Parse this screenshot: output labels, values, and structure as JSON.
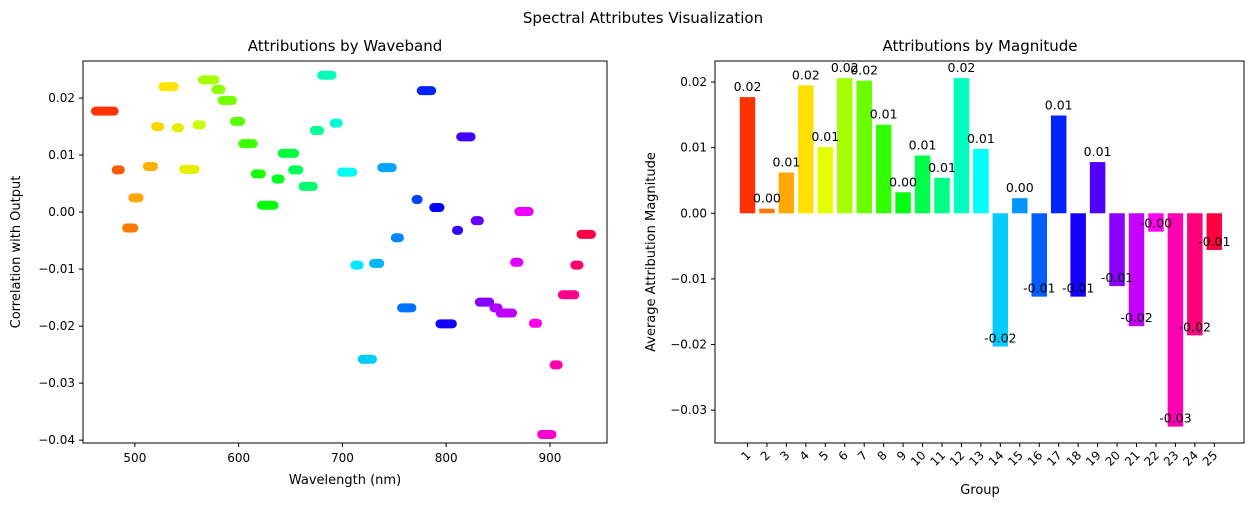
{
  "figure": {
    "suptitle": "Spectral Attributes Visualization"
  },
  "chart_data": [
    {
      "type": "scatter",
      "title": "Attributions by Waveband",
      "xlabel": "Wavelength (nm)",
      "ylabel": "Correlation with Output",
      "xlim": [
        450,
        955
      ],
      "ylim": [
        -0.0405,
        0.0265
      ],
      "xticks": [
        500,
        600,
        700,
        800,
        900
      ],
      "yticks": [
        -0.04,
        -0.03,
        -0.02,
        -0.01,
        0.0,
        0.01,
        0.02
      ],
      "ytick_labels": [
        "−0.04",
        "−0.03",
        "−0.02",
        "−0.01",
        "0.00",
        "0.01",
        "0.02"
      ],
      "grid": false,
      "segments": [
        {
          "x0": 462,
          "x1": 480,
          "y": 0.0177,
          "color": "#ff3300"
        },
        {
          "x0": 482,
          "x1": 486,
          "y": 0.0074,
          "color": "#ff5c00"
        },
        {
          "x0": 492,
          "x1": 499,
          "y": -0.0028,
          "color": "#ff7a00"
        },
        {
          "x0": 498,
          "x1": 504,
          "y": 0.0025,
          "color": "#ffa300"
        },
        {
          "x0": 512,
          "x1": 518,
          "y": 0.008,
          "color": "#ffb000"
        },
        {
          "x0": 520,
          "x1": 524,
          "y": 0.015,
          "color": "#ffd500"
        },
        {
          "x0": 527,
          "x1": 538,
          "y": 0.022,
          "color": "#ffe500"
        },
        {
          "x0": 540,
          "x1": 543,
          "y": 0.0148,
          "color": "#e3ee00"
        },
        {
          "x0": 547,
          "x1": 558,
          "y": 0.0075,
          "color": "#e6ef00"
        },
        {
          "x0": 560,
          "x1": 564,
          "y": 0.0153,
          "color": "#c8ff00"
        },
        {
          "x0": 565,
          "x1": 577,
          "y": 0.0232,
          "color": "#a6ff00"
        },
        {
          "x0": 578,
          "x1": 583,
          "y": 0.0215,
          "color": "#8cff00"
        },
        {
          "x0": 584,
          "x1": 594,
          "y": 0.0196,
          "color": "#75ff00"
        },
        {
          "x0": 596,
          "x1": 602,
          "y": 0.0159,
          "color": "#5cff00"
        },
        {
          "x0": 604,
          "x1": 614,
          "y": 0.012,
          "color": "#3aff00"
        },
        {
          "x0": 616,
          "x1": 622,
          "y": 0.0067,
          "color": "#18ff00"
        },
        {
          "x0": 622,
          "x1": 634,
          "y": 0.0012,
          "color": "#00ff00"
        },
        {
          "x0": 636,
          "x1": 640,
          "y": 0.0058,
          "color": "#00ff22"
        },
        {
          "x0": 642,
          "x1": 654,
          "y": 0.0103,
          "color": "#00ff3c"
        },
        {
          "x0": 652,
          "x1": 658,
          "y": 0.0074,
          "color": "#00ff55"
        },
        {
          "x0": 662,
          "x1": 672,
          "y": 0.0045,
          "color": "#00ff70"
        },
        {
          "x0": 673,
          "x1": 678,
          "y": 0.0143,
          "color": "#00ff95"
        },
        {
          "x0": 680,
          "x1": 690,
          "y": 0.024,
          "color": "#00ffbb"
        },
        {
          "x0": 692,
          "x1": 696,
          "y": 0.0156,
          "color": "#00ffd5"
        },
        {
          "x0": 699,
          "x1": 710,
          "y": 0.007,
          "color": "#00fff0"
        },
        {
          "x0": 712,
          "x1": 716,
          "y": -0.0093,
          "color": "#00e6ff"
        },
        {
          "x0": 719,
          "x1": 729,
          "y": -0.0258,
          "color": "#00ccff"
        },
        {
          "x0": 730,
          "x1": 736,
          "y": -0.009,
          "color": "#00b7ff"
        },
        {
          "x0": 738,
          "x1": 748,
          "y": 0.0078,
          "color": "#00a3ff"
        },
        {
          "x0": 751,
          "x1": 755,
          "y": -0.0045,
          "color": "#0088ff"
        },
        {
          "x0": 757,
          "x1": 767,
          "y": -0.0168,
          "color": "#0070ff"
        },
        {
          "x0": 771,
          "x1": 773,
          "y": 0.0022,
          "color": "#0044ff"
        },
        {
          "x0": 776,
          "x1": 786,
          "y": 0.0213,
          "color": "#0022ff"
        },
        {
          "x0": 788,
          "x1": 794,
          "y": 0.0008,
          "color": "#0000ff"
        },
        {
          "x0": 794,
          "x1": 806,
          "y": -0.0196,
          "color": "#1100ff"
        },
        {
          "x0": 810,
          "x1": 812,
          "y": -0.0032,
          "color": "#3300ff"
        },
        {
          "x0": 814,
          "x1": 824,
          "y": 0.0132,
          "color": "#4400ff"
        },
        {
          "x0": 828,
          "x1": 832,
          "y": -0.0015,
          "color": "#6600ff"
        },
        {
          "x0": 832,
          "x1": 842,
          "y": -0.0158,
          "color": "#8800ff"
        },
        {
          "x0": 846,
          "x1": 850,
          "y": -0.0168,
          "color": "#aa00ff"
        },
        {
          "x0": 852,
          "x1": 864,
          "y": -0.0177,
          "color": "#bb00ff"
        },
        {
          "x0": 866,
          "x1": 870,
          "y": -0.0088,
          "color": "#dd00ff"
        },
        {
          "x0": 870,
          "x1": 880,
          "y": 0.0001,
          "color": "#ee00ff"
        },
        {
          "x0": 884,
          "x1": 888,
          "y": -0.0195,
          "color": "#ff00ee"
        },
        {
          "x0": 892,
          "x1": 902,
          "y": -0.039,
          "color": "#ff00cc"
        },
        {
          "x0": 904,
          "x1": 908,
          "y": -0.0268,
          "color": "#ff00aa"
        },
        {
          "x0": 912,
          "x1": 924,
          "y": -0.0145,
          "color": "#ff0088"
        },
        {
          "x0": 924,
          "x1": 928,
          "y": -0.0093,
          "color": "#ff0066"
        },
        {
          "x0": 930,
          "x1": 940,
          "y": -0.0039,
          "color": "#ff0044"
        }
      ]
    },
    {
      "type": "bar",
      "title": "Attributions by Magnitude",
      "xlabel": "Group",
      "ylabel": "Average Attribution Magnitude",
      "ylim": [
        -0.035,
        0.0232
      ],
      "yticks": [
        -0.03,
        -0.02,
        -0.01,
        0.0,
        0.01,
        0.02
      ],
      "ytick_labels": [
        "−0.03",
        "−0.02",
        "−0.01",
        "0.00",
        "0.01",
        "0.02"
      ],
      "grid": false,
      "categories": [
        "1",
        "2",
        "3",
        "4",
        "5",
        "6",
        "7",
        "8",
        "9",
        "10",
        "11",
        "12",
        "13",
        "14",
        "15",
        "16",
        "17",
        "18",
        "19",
        "20",
        "21",
        "22",
        "23",
        "24",
        "25"
      ],
      "values": [
        0.0177,
        0.0007,
        0.0062,
        0.0195,
        0.0101,
        0.0206,
        0.0202,
        0.0135,
        0.0032,
        0.0088,
        0.0054,
        0.0206,
        0.0098,
        -0.0203,
        0.0023,
        -0.0127,
        0.0149,
        -0.0127,
        0.0078,
        -0.0111,
        -0.0172,
        -0.0028,
        -0.0325,
        -0.0186,
        -0.0056
      ],
      "value_labels": [
        "0.02",
        "0.00",
        "0.01",
        "0.02",
        "0.01",
        "0.02",
        "0.02",
        "0.01",
        "0.00",
        "0.01",
        "0.01",
        "0.02",
        "0.01",
        "-0.02",
        "0.00",
        "-0.01",
        "0.01",
        "-0.01",
        "0.01",
        "-0.01",
        "-0.02",
        "-0.00",
        "-0.03",
        "-0.02",
        "-0.01"
      ],
      "colors": [
        "#ff3300",
        "#ff7a00",
        "#ffa800",
        "#ffe000",
        "#e3ff00",
        "#a6ff00",
        "#6bff00",
        "#33ff00",
        "#00ff10",
        "#00ff4a",
        "#00ff84",
        "#00ffbe",
        "#00fff8",
        "#00ccff",
        "#0096ff",
        "#005eff",
        "#0024ff",
        "#1600ff",
        "#5000ff",
        "#8a00ff",
        "#c400ff",
        "#ff00ee",
        "#ff00b4",
        "#ff007a",
        "#ff0040"
      ]
    }
  ]
}
